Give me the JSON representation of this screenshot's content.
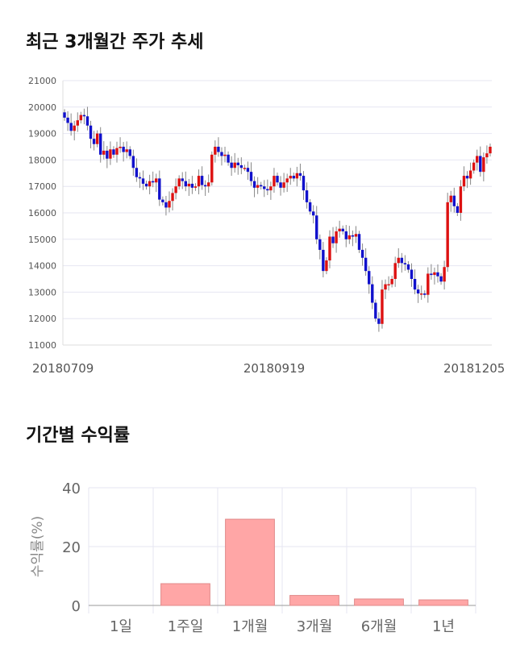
{
  "section1": {
    "title": "최근 3개월간 주가 추세"
  },
  "section2": {
    "title": "기간별 수익률"
  },
  "chart_data": [
    {
      "type": "candlestick",
      "ylim": [
        11000,
        21000
      ],
      "yticks": [
        11000,
        12000,
        13000,
        14000,
        15000,
        16000,
        17000,
        18000,
        19000,
        20000,
        21000
      ],
      "xtick_labels": [
        "20180709",
        "20180919",
        "20181205"
      ],
      "grid": true,
      "up_color": "#dd1111",
      "down_color": "#1111cc",
      "close": [
        19600,
        19400,
        19100,
        19300,
        19500,
        19700,
        19650,
        19300,
        18800,
        18600,
        19000,
        18200,
        18350,
        18050,
        18400,
        18200,
        18450,
        18500,
        18300,
        18400,
        18150,
        17700,
        17350,
        17300,
        17100,
        17000,
        17200,
        17150,
        17300,
        16500,
        16400,
        16200,
        16450,
        16750,
        17000,
        17300,
        17200,
        17000,
        17100,
        16950,
        17000,
        17400,
        17050,
        17000,
        17150,
        18200,
        18500,
        18300,
        18150,
        18200,
        17900,
        17700,
        17900,
        17800,
        17700,
        17700,
        17550,
        17200,
        16950,
        17050,
        17000,
        16900,
        16850,
        17000,
        17400,
        17150,
        16950,
        17150,
        17300,
        17400,
        17300,
        17500,
        17400,
        16850,
        16400,
        16050,
        15900,
        15000,
        14600,
        13800,
        14200,
        15100,
        14850,
        15300,
        15400,
        15300,
        15000,
        15150,
        15100,
        15200,
        14600,
        14300,
        13800,
        13300,
        12600,
        12000,
        11800,
        13100,
        13300,
        13300,
        13500,
        14100,
        14300,
        14100,
        14050,
        13850,
        13500,
        13100,
        12950,
        12950,
        12900,
        13700,
        13650,
        13750,
        13600,
        13400,
        13950,
        16400,
        16650,
        16250,
        16000,
        17000,
        17400,
        17300,
        17600,
        17900,
        18150,
        17550,
        18100,
        18250,
        18500
      ]
    },
    {
      "type": "bar",
      "categories": [
        "1일",
        "1주일",
        "1개월",
        "3개월",
        "6개월",
        "1년"
      ],
      "values": [
        0,
        7.4,
        29.3,
        3.4,
        2.2,
        1.9
      ],
      "ylabel": "수익률(%)",
      "ylim": [
        0,
        40
      ],
      "yticks": [
        0,
        20,
        40
      ],
      "bar_color": "#ffa6a6",
      "grid": true
    }
  ]
}
